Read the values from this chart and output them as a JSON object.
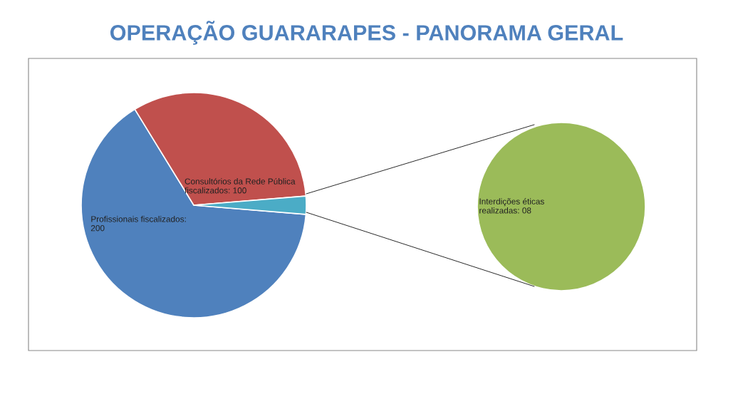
{
  "chart_data": [
    {
      "type": "pie",
      "title": "OPERAÇÃO GUARARAPES - PANORAMA GERAL",
      "categories": [
        "Profissionais fiscalizados:\n200",
        "Consultórios da Rede Pública\nfiscalizados: 100",
        null
      ],
      "values": [
        200,
        100,
        8
      ],
      "colors": [
        "#4f81bd",
        "#c0504d",
        "#4bacc6"
      ]
    },
    {
      "type": "pie",
      "categories": [
        "Interdições éticas\nrealizadas: 08"
      ],
      "values": [
        8
      ],
      "colors": [
        "#9bbb59"
      ]
    }
  ]
}
